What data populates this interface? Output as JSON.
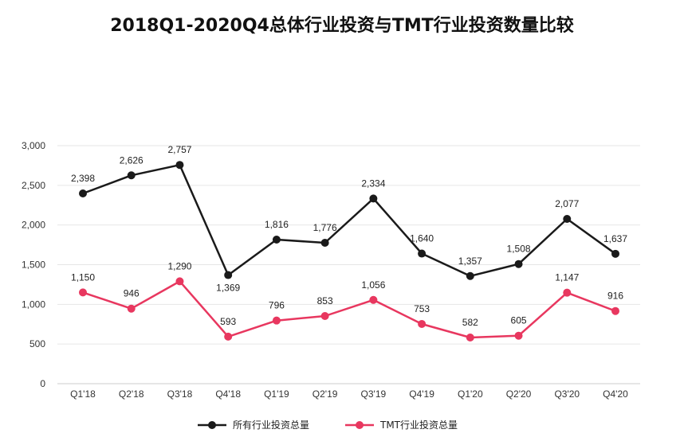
{
  "chart_data": {
    "type": "line",
    "title": "2018Q1-2020Q4总体行业投资与TMT行业投资数量比较",
    "xlabel": "",
    "ylabel": "",
    "categories": [
      "Q1'18",
      "Q2'18",
      "Q3'18",
      "Q4'18",
      "Q1'19",
      "Q2'19",
      "Q3'19",
      "Q4'19",
      "Q1'20",
      "Q2'20",
      "Q3'20",
      "Q4'20"
    ],
    "ylim": [
      0,
      3000
    ],
    "yticks": [
      0,
      500,
      1000,
      1500,
      2000,
      2500,
      3000
    ],
    "ytick_labels": [
      "0",
      "500",
      "1,000",
      "1,500",
      "2,000",
      "2,500",
      "3,000"
    ],
    "grid": true,
    "legend_position": "bottom",
    "series": [
      {
        "name": "所有行业投资总量",
        "color": "#1a1a1a",
        "values": [
          2398,
          2626,
          2757,
          1369,
          1816,
          1776,
          2334,
          1640,
          1357,
          1508,
          2077,
          1637
        ],
        "labels": [
          "2,398",
          "2,626",
          "2,757",
          "1,369",
          "1,816",
          "1,776",
          "2,334",
          "1,640",
          "1,357",
          "1,508",
          "2,077",
          "1,637"
        ]
      },
      {
        "name": "TMT行业投资总量",
        "color": "#e8375f",
        "values": [
          1150,
          946,
          1290,
          593,
          796,
          853,
          1056,
          753,
          582,
          605,
          1147,
          916
        ],
        "labels": [
          "1,150",
          "946",
          "1,290",
          "593",
          "796",
          "853",
          "1,056",
          "753",
          "582",
          "605",
          "1,147",
          "916"
        ]
      }
    ]
  }
}
